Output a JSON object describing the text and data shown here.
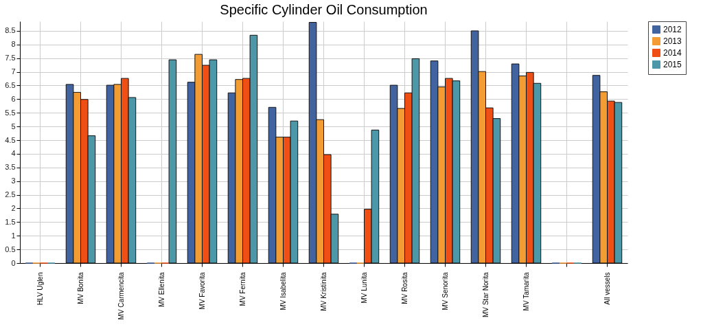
{
  "chart_data": {
    "type": "bar",
    "title": "Specific Cylinder Oil Consumption",
    "categories": [
      "HLV Uglen",
      "MV Bonita",
      "MV Carmencita",
      "MV Ellenita",
      "MV Favorita",
      "MV Fernita",
      "MV Isabelita",
      "MV Kristinita",
      "MV Lunita",
      "MV Rosita",
      "MV Senorita",
      "MV Star Norita",
      "MV Tamarita",
      null,
      "All vessels"
    ],
    "series": [
      {
        "name": "2012",
        "color": "#41639f",
        "values": [
          0,
          6.54,
          6.51,
          0,
          6.62,
          6.23,
          5.7,
          8.81,
          0,
          6.51,
          7.4,
          8.5,
          7.29,
          0,
          6.87
        ]
      },
      {
        "name": "2013",
        "color": "#f39c33",
        "values": [
          0,
          6.25,
          6.54,
          0,
          7.64,
          6.72,
          4.61,
          5.25,
          0,
          5.66,
          6.45,
          7.01,
          6.85,
          0,
          6.27
        ]
      },
      {
        "name": "2014",
        "color": "#ef4e14",
        "values": [
          0,
          5.99,
          6.76,
          0,
          7.24,
          6.76,
          4.61,
          3.97,
          1.97,
          6.23,
          6.76,
          5.68,
          6.98,
          0,
          5.93
        ]
      },
      {
        "name": "2015",
        "color": "#4c97a8",
        "values": [
          0,
          4.66,
          6.06,
          7.44,
          7.44,
          8.34,
          5.2,
          1.79,
          4.87,
          7.48,
          6.67,
          5.29,
          6.58,
          0,
          5.88
        ]
      }
    ],
    "ylim": [
      0,
      8.85
    ],
    "yticks": [
      0,
      0.5,
      1,
      1.5,
      2,
      2.5,
      3,
      3.5,
      4,
      4.5,
      5,
      5.5,
      6,
      6.5,
      7,
      7.5,
      8,
      8.5
    ],
    "grid": true,
    "legend": "top right"
  }
}
